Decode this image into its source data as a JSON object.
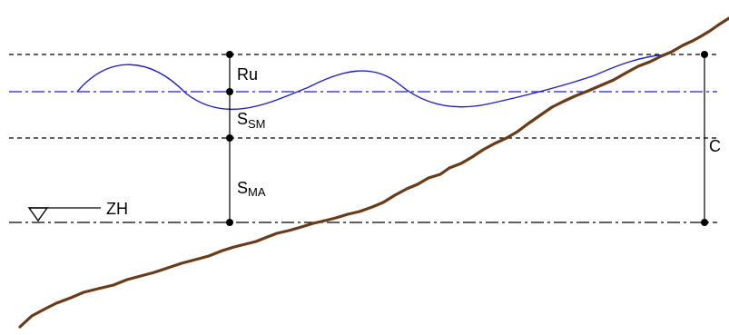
{
  "labels": {
    "ru": "Ru",
    "ssm_main": "S",
    "ssm_sub": "SM",
    "sma_main": "S",
    "sma_sub": "MA",
    "c": "C",
    "zh": "ZH"
  },
  "colors": {
    "reference_lines": "#000000",
    "mean_sea_level": "#1f1fd6",
    "wave": "#1f1fd6",
    "terrain": "#6b3a17"
  }
}
